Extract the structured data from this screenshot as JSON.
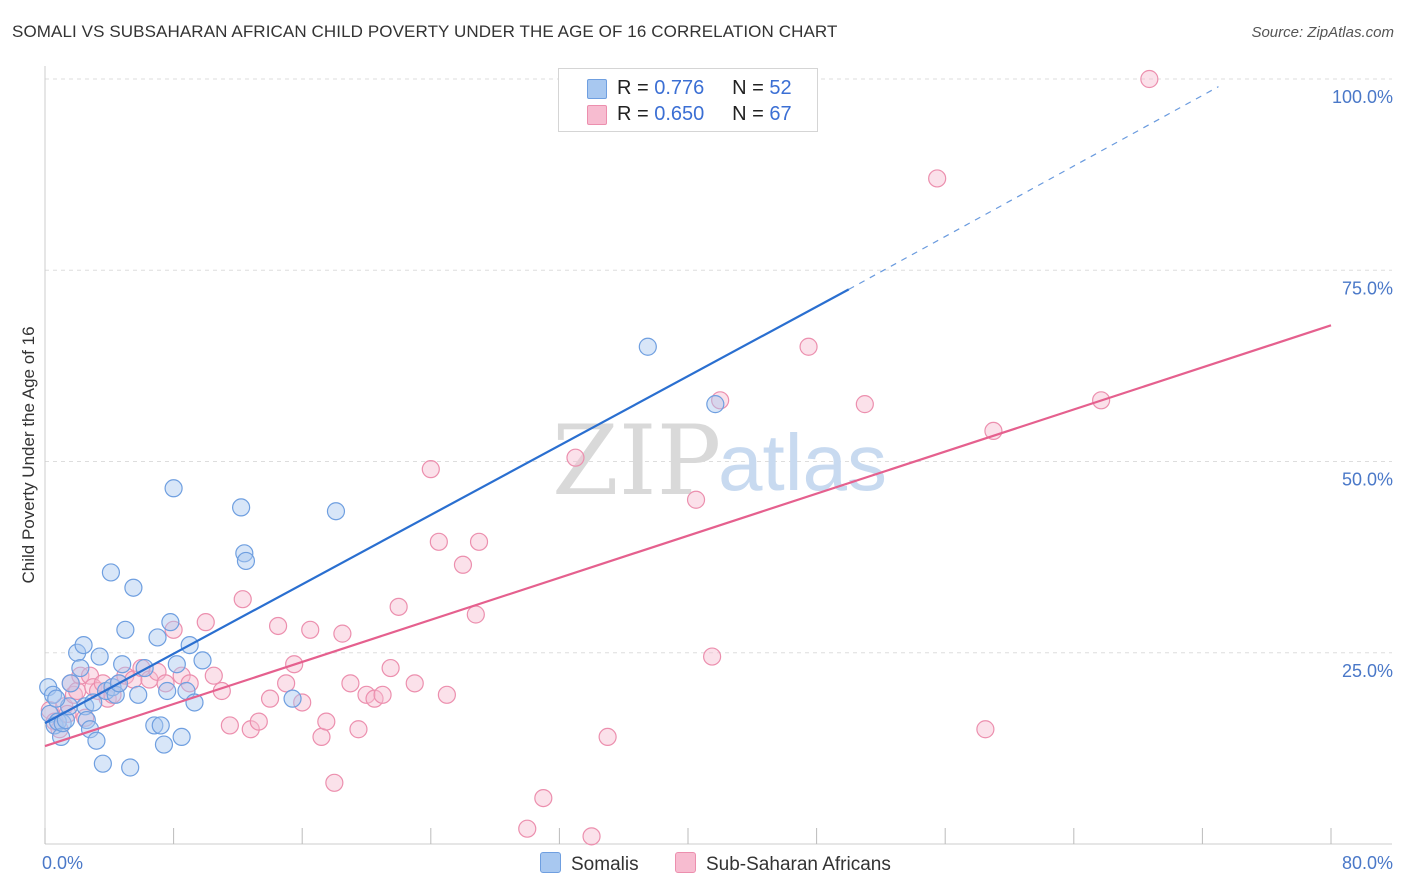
{
  "title": "SOMALI VS SUBSAHARAN AFRICAN CHILD POVERTY UNDER THE AGE OF 16 CORRELATION CHART",
  "source": "Source: ZipAtlas.com",
  "watermark": {
    "zip": "ZIP",
    "atlas": "atlas"
  },
  "colors": {
    "somali_fill": "#a8c8f0",
    "somali_stroke": "#6f9fe0",
    "somali_line": "#2a6fd0",
    "ssa_fill": "#f7bcd0",
    "ssa_stroke": "#ec8fae",
    "ssa_line": "#e5608e",
    "accent_text": "#3b6fd4"
  },
  "legend": {
    "somali": {
      "r_label": "R =",
      "r_value": "0.776",
      "n_label": "N =",
      "n_value": "52"
    },
    "ssa": {
      "r_label": "R =",
      "r_value": "0.650",
      "n_label": "N =",
      "n_value": "67"
    }
  },
  "bottom_legend": {
    "somali": "Somalis",
    "ssa": "Sub-Saharan Africans"
  },
  "chart_data": {
    "type": "scatter",
    "title": "SOMALI VS SUBSAHARAN AFRICAN CHILD POVERTY UNDER THE AGE OF 16 CORRELATION CHART",
    "xlabel": "",
    "ylabel": "Child Poverty Under the Age of 16",
    "xlim": [
      0,
      80
    ],
    "ylim": [
      0,
      100
    ],
    "x_tick_labels": [
      {
        "value": 0,
        "label": "0.0%"
      },
      {
        "value": 80,
        "label": "80.0%"
      }
    ],
    "y_tick_labels": [
      {
        "value": 25,
        "label": "25.0%"
      },
      {
        "value": 50,
        "label": "50.0%"
      },
      {
        "value": 75,
        "label": "75.0%"
      },
      {
        "value": 100,
        "label": "100.0%"
      }
    ],
    "x_minor_ticks": [
      0,
      8,
      16,
      24,
      32,
      40,
      48,
      56,
      64,
      72,
      80
    ],
    "grid": true,
    "series": [
      {
        "name": "Somalis",
        "r": 0.776,
        "n": 52,
        "trend": {
          "x0": 0,
          "y0": 15.8,
          "x1": 50,
          "y1": 72.5,
          "dashed_to_x": 73,
          "dashed_to_y": 99
        },
        "points": [
          [
            0.2,
            20.5
          ],
          [
            0.3,
            17.0
          ],
          [
            0.5,
            19.5
          ],
          [
            0.6,
            15.5
          ],
          [
            0.8,
            16.0
          ],
          [
            1.0,
            14.0
          ],
          [
            1.1,
            15.8
          ],
          [
            1.3,
            16.2
          ],
          [
            1.5,
            18.0
          ],
          [
            1.6,
            21.0
          ],
          [
            2.0,
            25.0
          ],
          [
            2.2,
            23.0
          ],
          [
            2.4,
            26.0
          ],
          [
            2.5,
            18.0
          ],
          [
            2.6,
            16.2
          ],
          [
            2.8,
            15.0
          ],
          [
            3.0,
            18.5
          ],
          [
            3.2,
            13.5
          ],
          [
            3.4,
            24.5
          ],
          [
            3.6,
            10.5
          ],
          [
            3.8,
            20.0
          ],
          [
            4.1,
            35.5
          ],
          [
            4.2,
            20.5
          ],
          [
            4.4,
            19.5
          ],
          [
            4.6,
            21.0
          ],
          [
            4.8,
            23.5
          ],
          [
            5.0,
            28.0
          ],
          [
            5.3,
            10.0
          ],
          [
            5.5,
            33.5
          ],
          [
            5.8,
            19.5
          ],
          [
            6.2,
            23.0
          ],
          [
            6.8,
            15.5
          ],
          [
            7.0,
            27.0
          ],
          [
            7.2,
            15.5
          ],
          [
            7.4,
            13.0
          ],
          [
            7.6,
            20.0
          ],
          [
            7.8,
            29.0
          ],
          [
            8.0,
            46.5
          ],
          [
            8.2,
            23.5
          ],
          [
            8.5,
            14.0
          ],
          [
            8.8,
            20.0
          ],
          [
            9.0,
            26.0
          ],
          [
            9.3,
            18.5
          ],
          [
            9.8,
            24.0
          ],
          [
            12.2,
            44.0
          ],
          [
            12.4,
            38.0
          ],
          [
            12.5,
            37.0
          ],
          [
            15.4,
            19.0
          ],
          [
            18.1,
            43.5
          ],
          [
            37.5,
            65.0
          ],
          [
            41.7,
            57.5
          ],
          [
            0.7,
            19.0
          ]
        ]
      },
      {
        "name": "Sub-Saharan Africans",
        "r": 0.65,
        "n": 67,
        "trend": {
          "x0": 0,
          "y0": 12.8,
          "x1": 80,
          "y1": 67.8
        },
        "points": [
          [
            0.3,
            17.5
          ],
          [
            0.6,
            16.0
          ],
          [
            0.9,
            15.0
          ],
          [
            1.2,
            18.0
          ],
          [
            1.4,
            17.0
          ],
          [
            1.6,
            21.0
          ],
          [
            1.8,
            19.5
          ],
          [
            2.0,
            20.0
          ],
          [
            2.2,
            22.0
          ],
          [
            2.5,
            16.5
          ],
          [
            2.8,
            22.0
          ],
          [
            3.0,
            20.5
          ],
          [
            3.3,
            20.0
          ],
          [
            3.6,
            21.0
          ],
          [
            3.9,
            19.0
          ],
          [
            4.2,
            19.5
          ],
          [
            4.6,
            21.0
          ],
          [
            5.0,
            22.0
          ],
          [
            5.5,
            21.5
          ],
          [
            6.0,
            23.0
          ],
          [
            6.5,
            21.5
          ],
          [
            7.0,
            22.5
          ],
          [
            7.5,
            21.0
          ],
          [
            8.0,
            28.0
          ],
          [
            8.5,
            22.0
          ],
          [
            9.0,
            21.0
          ],
          [
            10.0,
            29.0
          ],
          [
            10.5,
            22.0
          ],
          [
            11.0,
            20.0
          ],
          [
            11.5,
            15.5
          ],
          [
            12.3,
            32.0
          ],
          [
            12.8,
            15.0
          ],
          [
            13.3,
            16.0
          ],
          [
            14.0,
            19.0
          ],
          [
            14.5,
            28.5
          ],
          [
            15.0,
            21.0
          ],
          [
            15.5,
            23.5
          ],
          [
            16.0,
            18.5
          ],
          [
            16.5,
            28.0
          ],
          [
            17.2,
            14.0
          ],
          [
            17.5,
            16.0
          ],
          [
            18.0,
            8.0
          ],
          [
            18.5,
            27.5
          ],
          [
            19.0,
            21.0
          ],
          [
            19.5,
            15.0
          ],
          [
            20.0,
            19.5
          ],
          [
            20.5,
            19.0
          ],
          [
            21.0,
            19.5
          ],
          [
            21.5,
            23.0
          ],
          [
            22.0,
            31.0
          ],
          [
            23.0,
            21.0
          ],
          [
            24.0,
            49.0
          ],
          [
            24.5,
            39.5
          ],
          [
            25.0,
            19.5
          ],
          [
            26.0,
            36.5
          ],
          [
            26.8,
            30.0
          ],
          [
            27.0,
            39.5
          ],
          [
            30.0,
            2.0
          ],
          [
            31.0,
            6.0
          ],
          [
            33.0,
            50.5
          ],
          [
            34.0,
            1.0
          ],
          [
            35.0,
            14.0
          ],
          [
            40.5,
            45.0
          ],
          [
            41.5,
            24.5
          ],
          [
            42.0,
            58.0
          ],
          [
            47.5,
            65.0
          ],
          [
            51.0,
            57.5
          ]
        ],
        "extra_points": [
          [
            55.5,
            87.0
          ],
          [
            58.5,
            15.0
          ],
          [
            59.0,
            54.0
          ],
          [
            65.7,
            58.0
          ],
          [
            68.7,
            100.0
          ]
        ]
      }
    ]
  }
}
